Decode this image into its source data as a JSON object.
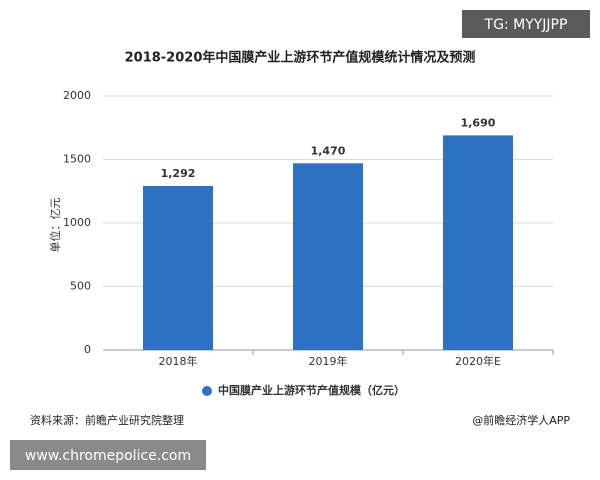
{
  "chart_data": {
    "type": "bar",
    "title": "2018-2020年中国膜产业上游环节产值规模统计情况及预测",
    "y_label": "单位：亿元",
    "categories": [
      "2018年",
      "2019年",
      "2020年E"
    ],
    "series": [
      {
        "name": "中国膜产业上游环节产值规模（亿元）",
        "color": "#2f72c4",
        "values": [
          1292,
          1470,
          1690
        ],
        "value_labels": [
          "1,292",
          "1,470",
          "1,690"
        ]
      }
    ],
    "ylim": [
      0,
      2000
    ],
    "yticks": [
      0,
      500,
      1000,
      1500,
      2000
    ],
    "grid": true,
    "source": "资料来源：前瞻产业研究院整理",
    "credit": "@前瞻经济学人APP"
  },
  "watermarks": [
    "TG: MYYJJPP",
    "www.chromepolice.com"
  ]
}
